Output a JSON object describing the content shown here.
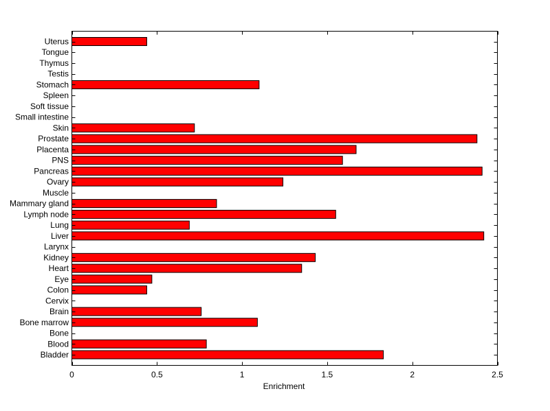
{
  "chart_data": {
    "type": "bar",
    "orientation": "horizontal",
    "title": "",
    "xlabel": "Enrichment",
    "ylabel": "",
    "xlim": [
      0,
      2.5
    ],
    "xticks": [
      "0",
      "0.5",
      "1",
      "1.5",
      "2",
      "2.5"
    ],
    "grid": false,
    "bar_color": "#ff0000",
    "categories": [
      "Bladder",
      "Blood",
      "Bone",
      "Bone marrow",
      "Brain",
      "Cervix",
      "Colon",
      "Eye",
      "Heart",
      "Kidney",
      "Larynx",
      "Liver",
      "Lung",
      "Lymph node",
      "Mammary gland",
      "Muscle",
      "Ovary",
      "Pancreas",
      "PNS",
      "Placenta",
      "Prostate",
      "Skin",
      "Small intestine",
      "Soft tissue",
      "Spleen",
      "Stomach",
      "Testis",
      "Thymus",
      "Tongue",
      "Uterus"
    ],
    "values": [
      1.83,
      0.79,
      0,
      1.09,
      0.76,
      0,
      0.44,
      0.47,
      1.35,
      1.43,
      0,
      2.42,
      0.69,
      1.55,
      0.85,
      0,
      1.24,
      2.41,
      1.59,
      1.67,
      2.38,
      0.72,
      0,
      0,
      0,
      1.1,
      0,
      0,
      0,
      0.44
    ]
  }
}
